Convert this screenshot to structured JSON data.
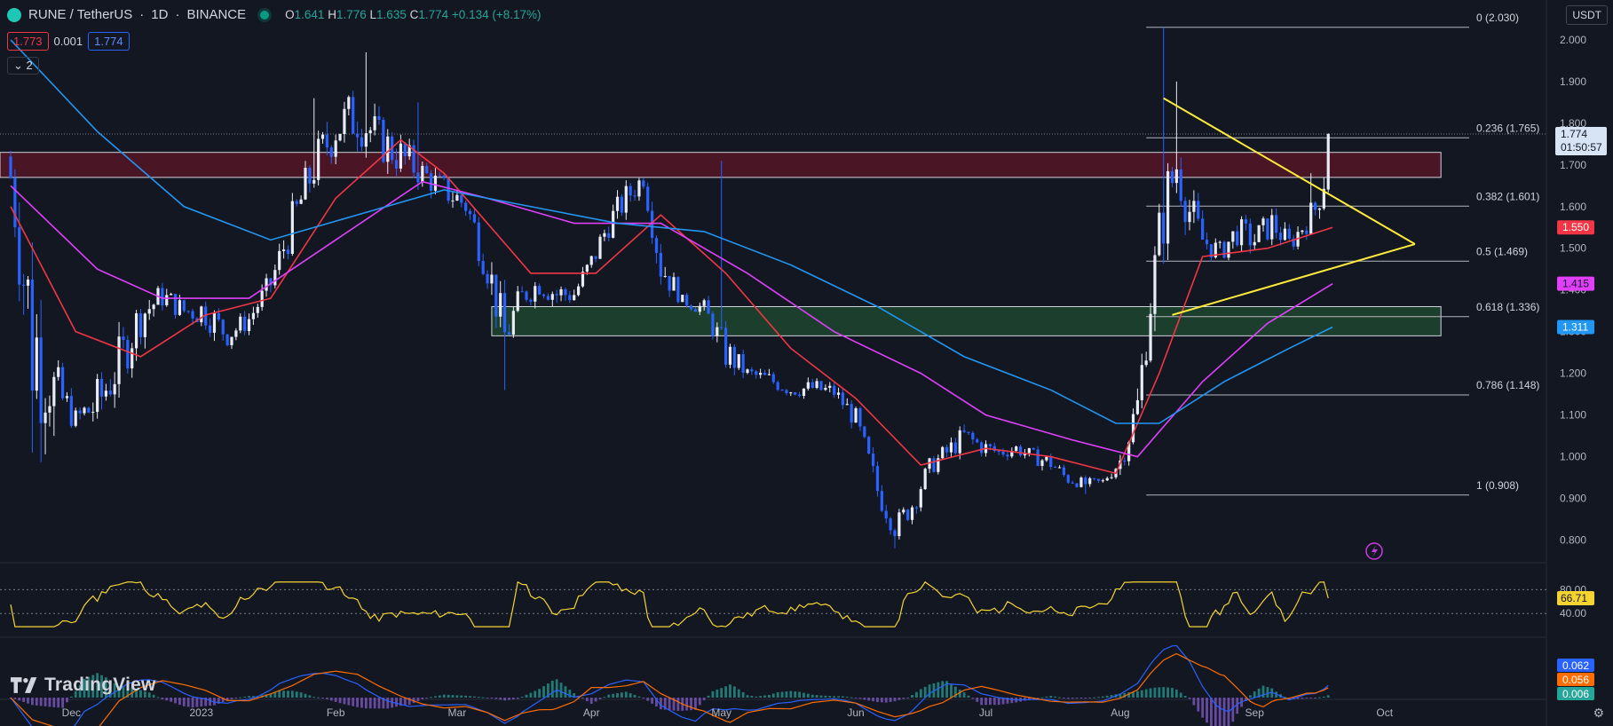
{
  "header": {
    "pair": "RUNE / TetherUS",
    "interval": "1D",
    "exchange": "BINANCE",
    "ohlc": {
      "o": "1.641",
      "h": "1.776",
      "l": "1.635",
      "c": "1.774",
      "change": "+0.134 (+8.17%)"
    },
    "sell_price": "1.773",
    "spread": "0.001",
    "buy_price": "1.774",
    "indicators_toggle": "2"
  },
  "currency_button": "USDT",
  "logo_text": "TradingView",
  "chart_data": {
    "type": "candlestick",
    "y_axis": {
      "min": 0.75,
      "max": 2.07,
      "ticks": [
        "2.000",
        "1.900",
        "1.800",
        "1.700",
        "1.600",
        "1.500",
        "1.400",
        "1.300",
        "1.200",
        "1.100",
        "1.000",
        "0.900",
        "0.800"
      ]
    },
    "x_axis_labels": [
      "Dec",
      "2023",
      "Feb",
      "Mar",
      "Apr",
      "May",
      "Jun",
      "Jul",
      "Aug",
      "Sep",
      "Oct"
    ],
    "x_axis_label_days": [
      14,
      44,
      75,
      103,
      134,
      164,
      195,
      225,
      256,
      287,
      317
    ],
    "days_shown": 340,
    "last_price": "1.774",
    "countdown": "01:50:57",
    "candles_summary": [
      [
        0,
        1.72,
        1.62
      ],
      [
        5,
        1.55,
        1.02
      ],
      [
        10,
        1.25,
        1.08
      ],
      [
        15,
        1.12,
        1.06
      ],
      [
        20,
        1.2,
        1.05
      ],
      [
        25,
        1.3,
        1.15
      ],
      [
        30,
        1.4,
        1.28
      ],
      [
        35,
        1.42,
        1.35
      ],
      [
        40,
        1.38,
        1.32
      ],
      [
        45,
        1.4,
        1.3
      ],
      [
        50,
        1.32,
        1.26
      ],
      [
        55,
        1.36,
        1.3
      ],
      [
        60,
        1.45,
        1.38
      ],
      [
        65,
        1.62,
        1.5
      ],
      [
        70,
        1.76,
        1.63
      ],
      [
        75,
        1.86,
        1.72
      ],
      [
        80,
        1.9,
        1.74
      ],
      [
        85,
        1.82,
        1.7
      ],
      [
        90,
        1.78,
        1.66
      ],
      [
        95,
        1.72,
        1.64
      ],
      [
        100,
        1.68,
        1.6
      ],
      [
        105,
        1.65,
        1.56
      ],
      [
        110,
        1.52,
        1.4
      ],
      [
        114,
        1.36,
        1.22
      ],
      [
        118,
        1.42,
        1.35
      ],
      [
        122,
        1.45,
        1.38
      ],
      [
        126,
        1.43,
        1.35
      ],
      [
        130,
        1.42,
        1.36
      ],
      [
        134,
        1.5,
        1.43
      ],
      [
        138,
        1.6,
        1.52
      ],
      [
        142,
        1.66,
        1.58
      ],
      [
        146,
        1.7,
        1.64
      ],
      [
        150,
        1.52,
        1.4
      ],
      [
        155,
        1.39,
        1.36
      ],
      [
        160,
        1.38,
        1.33
      ],
      [
        165,
        1.3,
        1.2
      ],
      [
        170,
        1.22,
        1.18
      ],
      [
        175,
        1.21,
        1.16
      ],
      [
        180,
        1.18,
        1.14
      ],
      [
        185,
        1.19,
        1.14
      ],
      [
        190,
        1.18,
        1.13
      ],
      [
        195,
        1.12,
        1.06
      ],
      [
        200,
        0.96,
        0.88
      ],
      [
        204,
        0.86,
        0.8
      ],
      [
        208,
        0.92,
        0.85
      ],
      [
        212,
        1.0,
        0.95
      ],
      [
        216,
        1.04,
        0.98
      ],
      [
        220,
        1.08,
        1.02
      ],
      [
        224,
        1.05,
        1.0
      ],
      [
        228,
        1.03,
        0.99
      ],
      [
        232,
        1.04,
        1.0
      ],
      [
        236,
        1.02,
        0.98
      ],
      [
        240,
        1.01,
        0.96
      ],
      [
        244,
        0.96,
        0.93
      ],
      [
        248,
        0.95,
        0.92
      ],
      [
        252,
        0.95,
        0.93
      ],
      [
        256,
        1.02,
        0.96
      ],
      [
        260,
        1.18,
        1.06
      ],
      [
        263,
        1.45,
        1.3
      ],
      [
        266,
        1.7,
        1.48
      ],
      [
        269,
        1.78,
        1.62
      ],
      [
        272,
        1.66,
        1.52
      ],
      [
        275,
        1.56,
        1.48
      ],
      [
        279,
        1.52,
        1.46
      ],
      [
        283,
        1.58,
        1.5
      ],
      [
        287,
        1.56,
        1.48
      ],
      [
        291,
        1.6,
        1.52
      ],
      [
        295,
        1.54,
        1.48
      ],
      [
        298,
        1.58,
        1.52
      ],
      [
        301,
        1.64,
        1.55
      ],
      [
        304,
        1.774,
        1.641
      ]
    ],
    "wick_highs": {
      "70": 1.86,
      "82": 1.97,
      "94": 1.85,
      "164": 1.71,
      "266": 2.03,
      "269": 1.9,
      "300": 1.68,
      "304": 1.776
    },
    "wick_lows": {
      "5": 1.01,
      "10": 1.05,
      "114": 1.16,
      "204": 0.78,
      "248": 0.91
    },
    "fibonacci": [
      {
        "label": "0 (2.030)",
        "value": 2.03
      },
      {
        "label": "0.236 (1.765)",
        "value": 1.765
      },
      {
        "label": "0.382 (1.601)",
        "value": 1.601
      },
      {
        "label": "0.5 (1.469)",
        "value": 1.469
      },
      {
        "label": "0.618 (1.336)",
        "value": 1.336
      },
      {
        "label": "0.786 (1.148)",
        "value": 1.148
      },
      {
        "label": "1 (0.908)",
        "value": 0.908
      }
    ],
    "fib_start_day": 262,
    "resistance_zone": {
      "from_day": 0,
      "to_day": 330,
      "top": 1.73,
      "bottom": 1.67
    },
    "support_zone": {
      "from_day": 111,
      "to_day": 330,
      "top": 1.36,
      "bottom": 1.29
    },
    "triangle": {
      "upper": [
        [
          266,
          1.86
        ],
        [
          324,
          1.51
        ]
      ],
      "lower": [
        [
          266,
          1.34
        ],
        [
          324,
          1.51
        ]
      ]
    },
    "moving_averages": [
      {
        "label": "1.550",
        "value": 1.55,
        "color": "#f23645",
        "points": [
          [
            0,
            1.6
          ],
          [
            15,
            1.3
          ],
          [
            30,
            1.24
          ],
          [
            45,
            1.34
          ],
          [
            60,
            1.38
          ],
          [
            75,
            1.62
          ],
          [
            90,
            1.76
          ],
          [
            100,
            1.68
          ],
          [
            110,
            1.56
          ],
          [
            120,
            1.44
          ],
          [
            135,
            1.44
          ],
          [
            150,
            1.58
          ],
          [
            165,
            1.44
          ],
          [
            180,
            1.26
          ],
          [
            195,
            1.14
          ],
          [
            210,
            0.98
          ],
          [
            225,
            1.02
          ],
          [
            240,
            1.0
          ],
          [
            255,
            0.96
          ],
          [
            265,
            1.2
          ],
          [
            275,
            1.48
          ],
          [
            290,
            1.5
          ],
          [
            305,
            1.55
          ]
        ]
      },
      {
        "label": "1.415",
        "value": 1.415,
        "color": "#e040fb",
        "points": [
          [
            0,
            1.65
          ],
          [
            20,
            1.45
          ],
          [
            35,
            1.38
          ],
          [
            55,
            1.38
          ],
          [
            75,
            1.52
          ],
          [
            95,
            1.66
          ],
          [
            110,
            1.62
          ],
          [
            130,
            1.56
          ],
          [
            150,
            1.56
          ],
          [
            170,
            1.44
          ],
          [
            190,
            1.3
          ],
          [
            210,
            1.2
          ],
          [
            225,
            1.1
          ],
          [
            245,
            1.04
          ],
          [
            260,
            1.0
          ],
          [
            275,
            1.18
          ],
          [
            290,
            1.32
          ],
          [
            305,
            1.415
          ]
        ]
      },
      {
        "label": "1.311",
        "value": 1.311,
        "color": "#2196f3",
        "points": [
          [
            0,
            2.0
          ],
          [
            20,
            1.78
          ],
          [
            40,
            1.6
          ],
          [
            60,
            1.52
          ],
          [
            80,
            1.58
          ],
          [
            100,
            1.64
          ],
          [
            120,
            1.6
          ],
          [
            140,
            1.56
          ],
          [
            160,
            1.54
          ],
          [
            180,
            1.46
          ],
          [
            200,
            1.36
          ],
          [
            220,
            1.24
          ],
          [
            240,
            1.16
          ],
          [
            255,
            1.08
          ],
          [
            265,
            1.08
          ],
          [
            280,
            1.18
          ],
          [
            295,
            1.26
          ],
          [
            305,
            1.311
          ]
        ]
      }
    ],
    "rsi": {
      "value": "66.71",
      "levels": [
        "80.00",
        "40.00"
      ]
    },
    "macd": {
      "values": [
        "0.062",
        "0.056",
        "0.006"
      ],
      "colors": [
        "#2962ff",
        "#ff6d00",
        "#26a69a"
      ]
    }
  }
}
